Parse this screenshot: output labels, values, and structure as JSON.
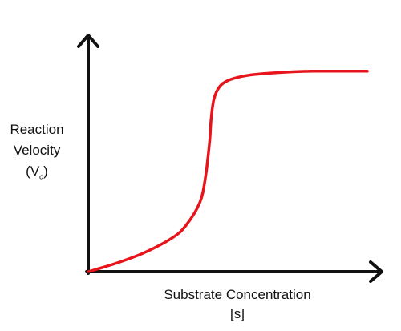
{
  "chart_data": {
    "type": "line",
    "title": "",
    "xlabel": "Substrate Concentration",
    "xlabel_unit": "[s]",
    "ylabel_lines": [
      "Reaction",
      "Velocity"
    ],
    "ylabel_symbol": "(V",
    "ylabel_subscript": "o",
    "ylabel_close": ")",
    "xlim": [
      0,
      100
    ],
    "ylim": [
      0,
      100
    ],
    "grid": false,
    "legend": "none",
    "series": [
      {
        "color": "#e8141c",
        "x": [
          0,
          10,
          20,
          30,
          35,
          40,
          42,
          43.5,
          44,
          45,
          47,
          50,
          55,
          60,
          70,
          80,
          90,
          100
        ],
        "y": [
          0,
          4,
          9,
          16,
          22,
          33,
          45,
          62,
          72,
          82,
          88,
          91,
          93,
          94,
          95,
          95.5,
          95.5,
          95.5
        ]
      }
    ],
    "axis_color": "#111111"
  }
}
